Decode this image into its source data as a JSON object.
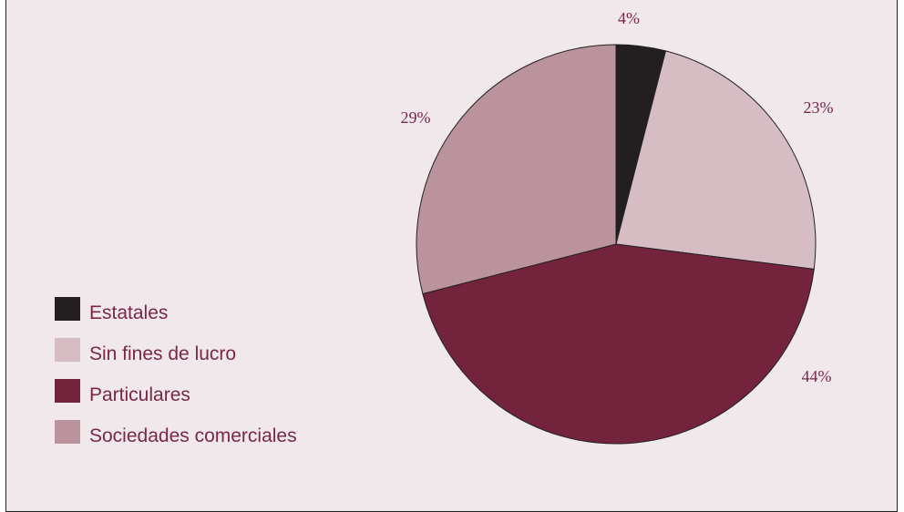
{
  "colors": {
    "background": "#f1e8ec",
    "label_text": "#7a2840",
    "outline": "#222222"
  },
  "chart_data": {
    "type": "pie",
    "start": "12 o'clock",
    "direction": "clockwise",
    "legend_placement": "bottom-left",
    "slices": [
      {
        "name": "Estatales",
        "value": 4,
        "label": "4%",
        "color": "#231f20"
      },
      {
        "name": "Sin fines de lucro",
        "value": 23,
        "label": "23%",
        "color": "#d6bcc3"
      },
      {
        "name": "Particulares",
        "value": 44,
        "label": "44%",
        "color": "#73233b"
      },
      {
        "name": "Sociedades comerciales",
        "value": 29,
        "label": "29%",
        "color": "#bb939c"
      }
    ]
  }
}
